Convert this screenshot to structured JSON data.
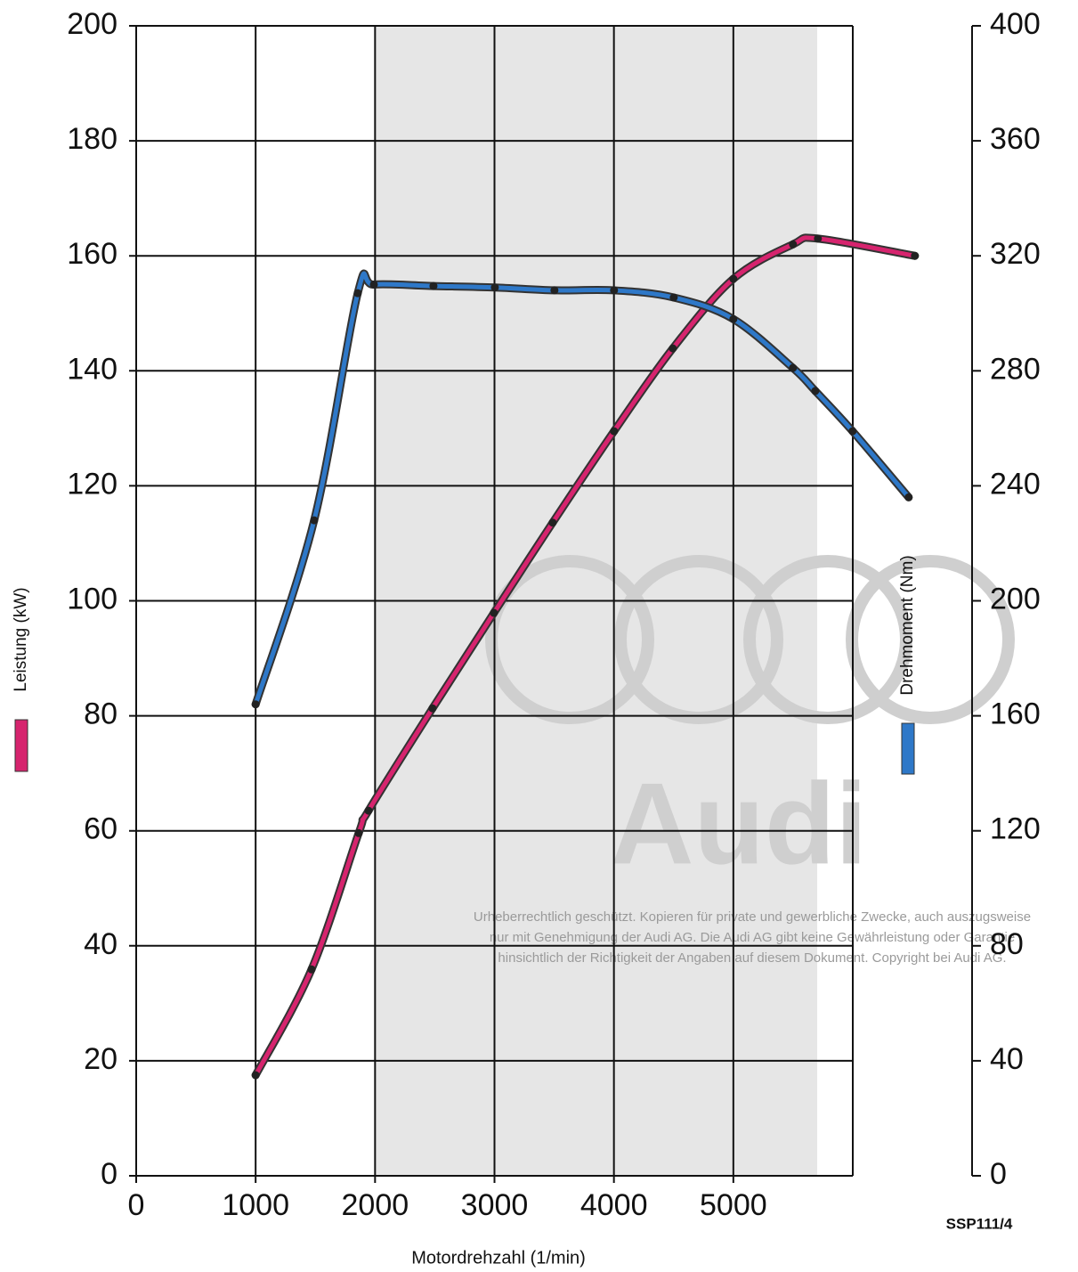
{
  "chart_data": {
    "type": "line",
    "x_label": "Motordrehzahl (1/min)",
    "footnote": "SSP111/4",
    "watermark": [
      "Audi",
      "Urheberrechtlich geschützt. Kopieren für private und gewerbliche Zwecke, auch auszugsweise",
      "nur mit Genehmigung der Audi AG. Die Audi AG gibt keine Gewährleistung oder Garantie",
      "hinsichtlich der Richtigkeit der Angaben auf diesem Dokument. Copyright bei Audi AG."
    ],
    "xlim": [
      0,
      6000
    ],
    "xticks": [
      0,
      1000,
      2000,
      3000,
      4000,
      5000
    ],
    "ylim": [
      0,
      200
    ],
    "yticks": [
      0,
      20,
      40,
      60,
      80,
      100,
      120,
      140,
      160,
      180,
      200
    ],
    "y2lim": [
      0,
      400
    ],
    "y2ticks": [
      0,
      40,
      80,
      120,
      160,
      200,
      240,
      280,
      320,
      360,
      400
    ],
    "grid": true,
    "series": [
      {
        "name": "Leistung (kW)",
        "color": "#d6246e",
        "x": [
          1000,
          1468,
          1863,
          1945,
          2481,
          2995,
          3487,
          4001,
          4493,
          5000,
          5499,
          5708,
          6520
        ],
        "values": [
          17.5,
          35.9,
          59.6,
          63.5,
          81.3,
          97.9,
          113.6,
          129.5,
          143.9,
          156,
          162,
          163,
          160
        ]
      },
      {
        "name": "Drehmoment (Nm)",
        "color": "#2e78c8",
        "axis": "y2",
        "x": [
          1000,
          1490,
          1855,
          1990,
          2489,
          3003,
          3502,
          4001,
          4501,
          5000,
          5499,
          5686,
          5998,
          6468
        ],
        "values": [
          164,
          228,
          307,
          310,
          309.5,
          309,
          308,
          308,
          305.5,
          298,
          281,
          273,
          259,
          236
        ]
      }
    ]
  }
}
